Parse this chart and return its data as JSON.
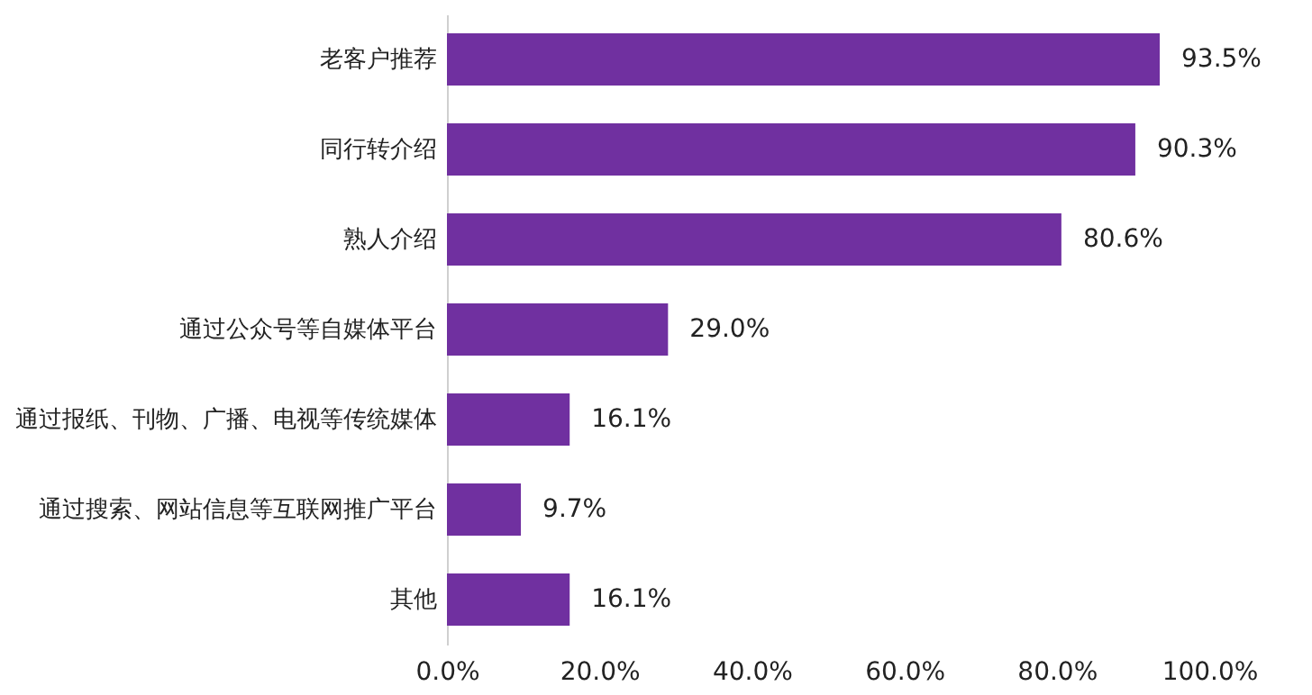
{
  "chart_data": {
    "type": "bar",
    "orientation": "horizontal",
    "categories": [
      "老客户推荐",
      "同行转介绍",
      "熟人介绍",
      "通过公众号等自媒体平台",
      "通过报纸、刊物、广播、电视等传统媒体",
      "通过搜索、网站信息等互联网推广平台",
      "其他"
    ],
    "values": [
      93.5,
      90.3,
      80.6,
      29.0,
      16.1,
      9.7,
      16.1
    ],
    "value_labels": [
      "93.5%",
      "90.3%",
      "80.6%",
      "29.0%",
      "16.1%",
      "9.7%",
      "16.1%"
    ],
    "color": "#7030a0",
    "xlim": [
      0,
      100
    ],
    "xticks": [
      {
        "value": 0,
        "label": "0.0%"
      },
      {
        "value": 20,
        "label": "20.0%"
      },
      {
        "value": 40,
        "label": "40.0%"
      },
      {
        "value": 60,
        "label": "60.0%"
      },
      {
        "value": 80,
        "label": "80.0%"
      },
      {
        "value": 100,
        "label": "100.0%"
      }
    ],
    "grid": false
  }
}
